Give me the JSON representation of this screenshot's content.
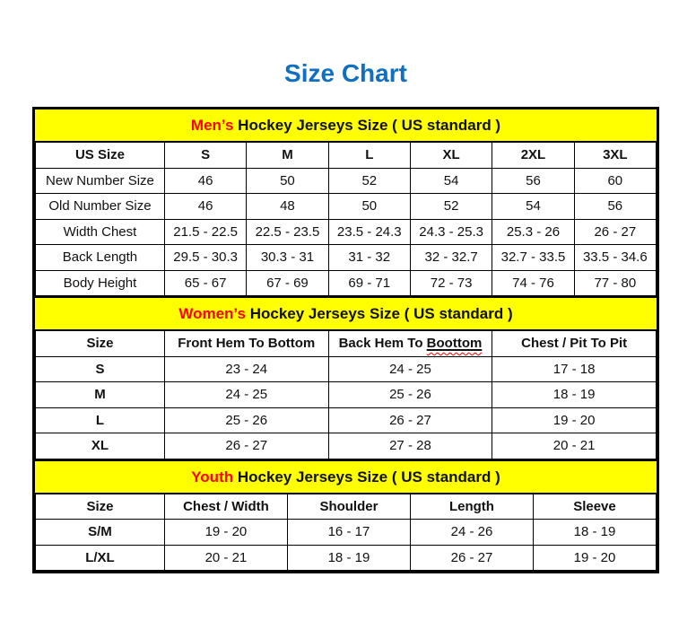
{
  "page_title": "Size Chart",
  "colors": {
    "title_blue": "#1070BF",
    "band_yellow": "#FFFF00",
    "accent_red": "#FF0000",
    "border_black": "#000000",
    "text_ink": "#111111"
  },
  "sections": [
    {
      "id": "mens",
      "title_accent": "Men’s",
      "title_rest": " Hockey Jerseys Size ( US standard )",
      "columns": [
        {
          "label": "US Size"
        },
        {
          "label": "S"
        },
        {
          "label": "M"
        },
        {
          "label": "L"
        },
        {
          "label": "XL"
        },
        {
          "label": "2XL"
        },
        {
          "label": "3XL"
        }
      ],
      "rows": [
        [
          "New Number Size",
          "46",
          "50",
          "52",
          "54",
          "56",
          "60"
        ],
        [
          "Old Number Size",
          "46",
          "48",
          "50",
          "52",
          "54",
          "56"
        ],
        [
          "Width Chest",
          "21.5 - 22.5",
          "22.5 - 23.5",
          "23.5 - 24.3",
          "24.3 - 25.3",
          "25.3 - 26",
          "26 - 27"
        ],
        [
          "Back Length",
          "29.5 - 30.3",
          "30.3 - 31",
          "31 - 32",
          "32 - 32.7",
          "32.7 - 33.5",
          "33.5 - 34.6"
        ],
        [
          "Body Height",
          "65 - 67",
          "67 - 69",
          "69 - 71",
          "72 - 73",
          "74 - 76",
          "77 - 80"
        ]
      ]
    },
    {
      "id": "womens",
      "title_accent": "Women’s",
      "title_rest": " Hockey Jerseys Size ( US standard )",
      "columns": [
        {
          "label": "Size"
        },
        {
          "label": "Front Hem To Bottom"
        },
        {
          "label": "Back Hem To Boottom",
          "misspelled_word": "Boottom"
        },
        {
          "label": "Chest / Pit To Pit"
        }
      ],
      "rows": [
        [
          "S",
          "23 - 24",
          "24 - 25",
          "17 - 18"
        ],
        [
          "M",
          "24 - 25",
          "25 - 26",
          "18 - 19"
        ],
        [
          "L",
          "25 - 26",
          "26 - 27",
          "19 - 20"
        ],
        [
          "XL",
          "26 - 27",
          "27 - 28",
          "20 - 21"
        ]
      ]
    },
    {
      "id": "youth",
      "title_accent": "Youth",
      "title_rest": " Hockey Jerseys Size ( US standard )",
      "columns": [
        {
          "label": "Size"
        },
        {
          "label": "Chest / Width"
        },
        {
          "label": "Shoulder"
        },
        {
          "label": "Length"
        },
        {
          "label": "Sleeve"
        }
      ],
      "rows": [
        [
          "S/M",
          "19 - 20",
          "16 - 17",
          "24 - 26",
          "18 - 19"
        ],
        [
          "L/XL",
          "20 - 21",
          "18 - 19",
          "26 - 27",
          "19 - 20"
        ]
      ]
    }
  ]
}
